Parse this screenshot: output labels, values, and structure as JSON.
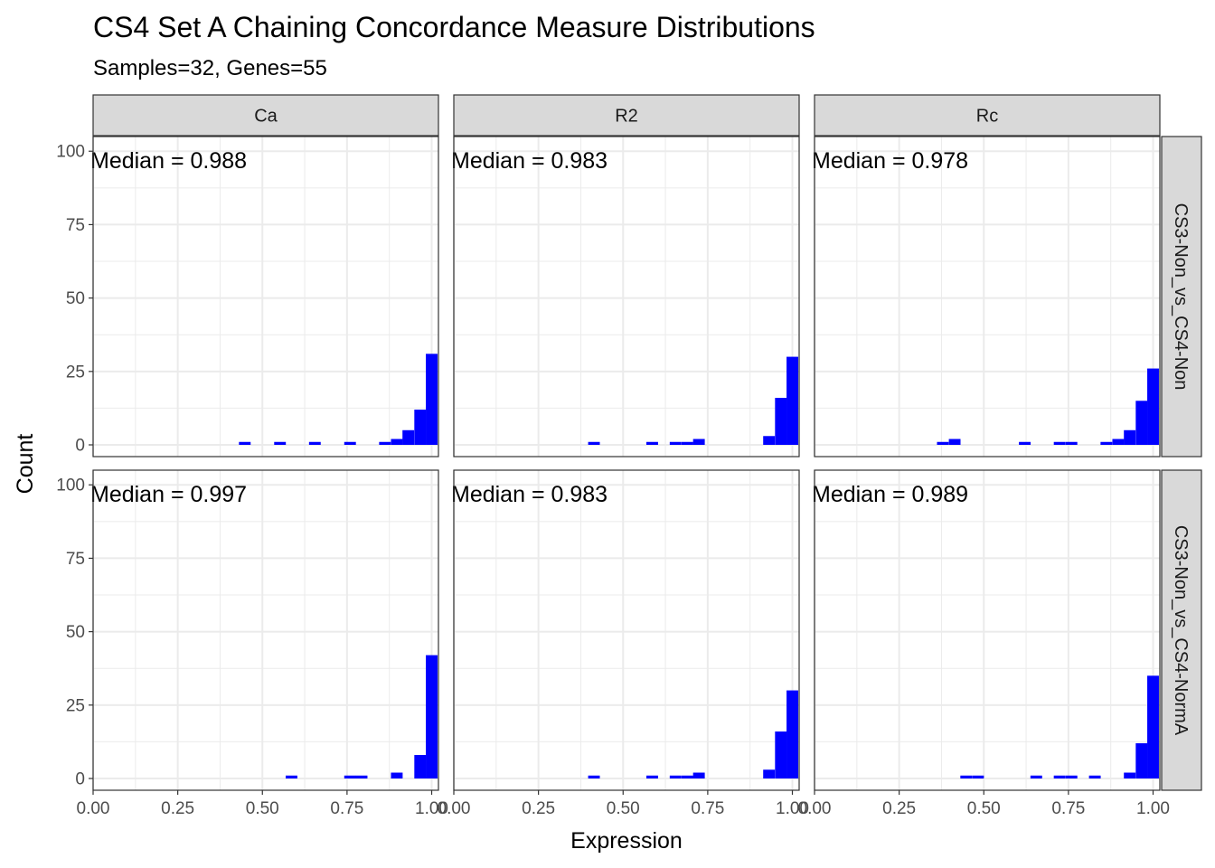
{
  "title": "CS4 Set A Chaining Concordance Measure Distributions",
  "subtitle": "Samples=32, Genes=55",
  "colors": {
    "bar": "#0000FF",
    "strip_bg": "#D9D9D9",
    "grid": "#EBEBEB",
    "panel_border": "#333333",
    "tick_text": "#4D4D4D"
  },
  "chart_data": {
    "type": "bar",
    "subtype": "faceted histogram",
    "xlabel": "Expression",
    "ylabel": "Count",
    "xlim": [
      0,
      1.02
    ],
    "ylim": [
      -4,
      105
    ],
    "x_ticks": [
      0,
      0.25,
      0.5,
      0.75,
      1
    ],
    "x_tick_labels": [
      "0.00",
      "0.25",
      "0.50",
      "0.75",
      "1.00"
    ],
    "y_ticks": [
      0,
      25,
      50,
      75,
      100
    ],
    "y_tick_labels": [
      "0",
      "25",
      "50",
      "75",
      "100"
    ],
    "bin_width": 0.0345,
    "grid": true,
    "legend": "none",
    "column_facets": [
      "Ca",
      "R2",
      "Rc"
    ],
    "row_facets": [
      "CS3-Non_vs_CS4-Non",
      "CS3-Non_vs_CS4-NormA"
    ],
    "panels": [
      {
        "row": "CS3-Non_vs_CS4-Non",
        "col": "Ca",
        "median_label": "Median = 0.988",
        "bins": [
          [
            0.448,
            1
          ],
          [
            0.552,
            1
          ],
          [
            0.655,
            1
          ],
          [
            0.759,
            1
          ],
          [
            0.862,
            1
          ],
          [
            0.897,
            2
          ],
          [
            0.931,
            5
          ],
          [
            0.966,
            12
          ],
          [
            1.0,
            31
          ]
        ]
      },
      {
        "row": "CS3-Non_vs_CS4-Non",
        "col": "R2",
        "median_label": "Median = 0.983",
        "bins": [
          [
            0.414,
            1
          ],
          [
            0.586,
            1
          ],
          [
            0.655,
            1
          ],
          [
            0.69,
            1
          ],
          [
            0.724,
            2
          ],
          [
            0.931,
            3
          ],
          [
            0.966,
            16
          ],
          [
            1.0,
            30
          ]
        ]
      },
      {
        "row": "CS3-Non_vs_CS4-Non",
        "col": "Rc",
        "median_label": "Median = 0.978",
        "bins": [
          [
            0.379,
            1
          ],
          [
            0.414,
            2
          ],
          [
            0.621,
            1
          ],
          [
            0.724,
            1
          ],
          [
            0.759,
            1
          ],
          [
            0.862,
            1
          ],
          [
            0.897,
            2
          ],
          [
            0.931,
            5
          ],
          [
            0.966,
            15
          ],
          [
            1.0,
            26
          ]
        ]
      },
      {
        "row": "CS3-Non_vs_CS4-NormA",
        "col": "Ca",
        "median_label": "Median = 0.997",
        "bins": [
          [
            0.586,
            1
          ],
          [
            0.759,
            1
          ],
          [
            0.793,
            1
          ],
          [
            0.897,
            2
          ],
          [
            0.966,
            8
          ],
          [
            1.0,
            42
          ]
        ]
      },
      {
        "row": "CS3-Non_vs_CS4-NormA",
        "col": "R2",
        "median_label": "Median = 0.983",
        "bins": [
          [
            0.414,
            1
          ],
          [
            0.586,
            1
          ],
          [
            0.655,
            1
          ],
          [
            0.69,
            1
          ],
          [
            0.724,
            2
          ],
          [
            0.931,
            3
          ],
          [
            0.966,
            16
          ],
          [
            1.0,
            30
          ]
        ]
      },
      {
        "row": "CS3-Non_vs_CS4-NormA",
        "col": "Rc",
        "median_label": "Median = 0.989",
        "bins": [
          [
            0.448,
            1
          ],
          [
            0.483,
            1
          ],
          [
            0.655,
            1
          ],
          [
            0.724,
            1
          ],
          [
            0.759,
            1
          ],
          [
            0.828,
            1
          ],
          [
            0.931,
            2
          ],
          [
            0.966,
            12
          ],
          [
            1.0,
            35
          ]
        ]
      }
    ]
  }
}
